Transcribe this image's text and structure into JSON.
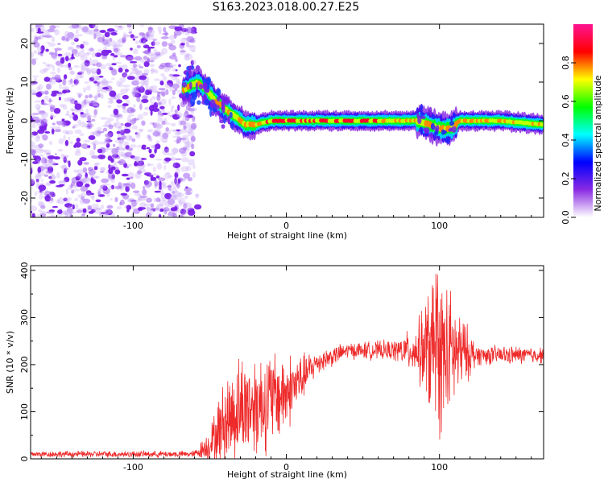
{
  "title": "S163.2023.018.00.27.E25",
  "chart_data": [
    {
      "type": "heatmap",
      "title": "S163.2023.018.00.27.E25",
      "xlabel": "Height of straight line (km)",
      "ylabel": "Frequency (Hz)",
      "xlim": [
        -167,
        168
      ],
      "ylim": [
        -25,
        25
      ],
      "xticks": [
        -100,
        0,
        100
      ],
      "yticks": [
        -20,
        -10,
        0,
        10,
        20
      ],
      "colorbar": {
        "label": "Normalized spectral amplitude",
        "range": [
          0,
          1
        ],
        "ticks": [
          0.0,
          0.2,
          0.4,
          0.6,
          0.8
        ],
        "colors": [
          "#ffffff",
          "#8a2be2",
          "#0000ff",
          "#00ffff",
          "#00ff00",
          "#ffff00",
          "#ff0000",
          "#ff1493"
        ]
      },
      "noise_region": {
        "x": [
          -167,
          -60
        ],
        "freq": [
          -25,
          25
        ],
        "amplitude": 0.15
      },
      "ridge": [
        {
          "x": -67,
          "f": 8
        },
        {
          "x": -58,
          "f": 10
        },
        {
          "x": -52,
          "f": 8
        },
        {
          "x": -46,
          "f": 5
        },
        {
          "x": -40,
          "f": 3
        },
        {
          "x": -33,
          "f": 1
        },
        {
          "x": -27,
          "f": -1
        },
        {
          "x": -20,
          "f": -1
        },
        {
          "x": -10,
          "f": 0
        },
        {
          "x": 0,
          "f": 0
        },
        {
          "x": 20,
          "f": 0
        },
        {
          "x": 40,
          "f": 0
        },
        {
          "x": 60,
          "f": 0
        },
        {
          "x": 75,
          "f": 0
        },
        {
          "x": 85,
          "f": 0
        },
        {
          "x": 93,
          "f": -1
        },
        {
          "x": 100,
          "f": -2
        },
        {
          "x": 108,
          "f": -2
        },
        {
          "x": 113,
          "f": 0
        },
        {
          "x": 140,
          "f": 0
        },
        {
          "x": 168,
          "f": -1
        }
      ]
    },
    {
      "type": "line",
      "xlabel": "Height of straight line (km)",
      "ylabel": "SNR (10 * v/v)",
      "xlim": [
        -167,
        168
      ],
      "ylim": [
        0,
        410
      ],
      "xticks": [
        -100,
        0,
        100
      ],
      "yticks": [
        0,
        100,
        200,
        300,
        400
      ],
      "color": "#ee2a2a",
      "envelope": [
        {
          "x": -167,
          "mean": 10,
          "amp": 8
        },
        {
          "x": -60,
          "mean": 10,
          "amp": 8
        },
        {
          "x": -50,
          "mean": 30,
          "amp": 40
        },
        {
          "x": -40,
          "mean": 80,
          "amp": 110
        },
        {
          "x": -30,
          "mean": 110,
          "amp": 130
        },
        {
          "x": -15,
          "mean": 120,
          "amp": 130
        },
        {
          "x": 0,
          "mean": 140,
          "amp": 100
        },
        {
          "x": 10,
          "mean": 170,
          "amp": 60
        },
        {
          "x": 20,
          "mean": 205,
          "amp": 30
        },
        {
          "x": 40,
          "mean": 230,
          "amp": 20
        },
        {
          "x": 70,
          "mean": 230,
          "amp": 25
        },
        {
          "x": 85,
          "mean": 230,
          "amp": 60
        },
        {
          "x": 95,
          "mean": 230,
          "amp": 180
        },
        {
          "x": 102,
          "mean": 220,
          "amp": 200
        },
        {
          "x": 115,
          "mean": 225,
          "amp": 90
        },
        {
          "x": 125,
          "mean": 220,
          "amp": 25
        },
        {
          "x": 168,
          "mean": 220,
          "amp": 20
        }
      ]
    }
  ]
}
